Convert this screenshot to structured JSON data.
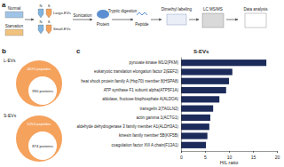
{
  "panel_a": {
    "label": "a",
    "groups": [
      "Normal",
      "Starvation"
    ],
    "tube_letters": [
      "N",
      "S"
    ],
    "fractions": [
      "Large-EVs",
      "Small-EVs"
    ],
    "steps": [
      "Sonication",
      "Tryptic digestion",
      "Dimethyl labeling",
      "LC MS/MS",
      "Data analysis"
    ],
    "products": [
      "Protein",
      "Peptide"
    ]
  },
  "panel_b": {
    "label": "b",
    "sets": [
      {
        "name": "L-EVs",
        "peptides": "4670 peptides",
        "proteins": "930 proteins"
      },
      {
        "name": "S-EVs",
        "peptides": "5254 peptides",
        "proteins": "874 proteins"
      }
    ]
  },
  "panel_c": {
    "label": "c"
  },
  "chart_data": {
    "type": "bar",
    "orientation": "horizontal",
    "title": "S-EVs",
    "x_label": "H/L ratio",
    "categories": [
      "pyruvate kinase M1/2(PKM)",
      "eukaryotic translation elongation factor 2(EEF2)",
      "heat shock protein family A (Hsp70) member 8(HSPA8)",
      "ATP synthase F1 subunit alpha(ATP5F1A)",
      "aldolase, fructose-bisphosphate A(ALDOA)",
      "transgelin 2(TAGLN2)",
      "actin gamma 1(ACTG1)",
      "aldehyde dehydrogenase 3 family member A1(ALDH3A1)",
      "kinesin family member 5B(KIF5B)",
      "coagulation factor XIII A chain(F13A1)"
    ],
    "values": [
      17.8,
      10.7,
      10.0,
      9.4,
      8.0,
      6.7,
      6.1,
      5.9,
      5.5,
      5.2
    ],
    "color": "#1c2b5a",
    "xlim": [
      0,
      20
    ],
    "xticks": [
      0,
      5,
      10,
      15,
      20
    ]
  }
}
